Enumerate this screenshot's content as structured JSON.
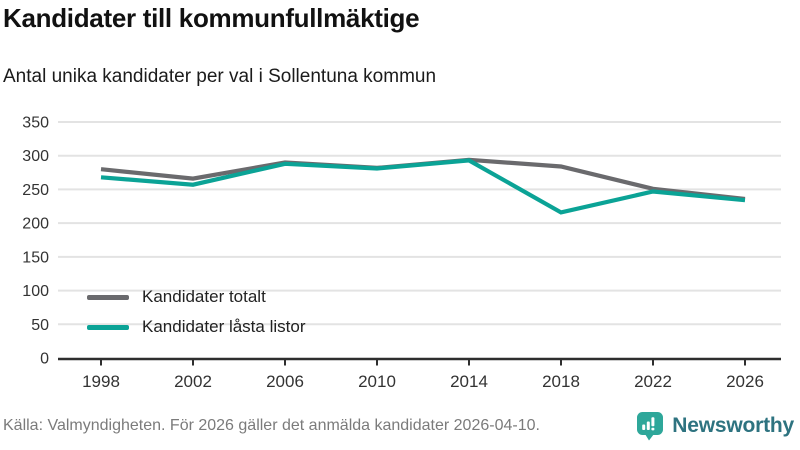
{
  "header": {
    "title": "Kandidater till kommunfullmäktige",
    "subtitle": "Antal unika kandidater per val i Sollentuna kommun"
  },
  "chart_data": {
    "type": "line",
    "categories": [
      "1998",
      "2002",
      "2006",
      "2010",
      "2014",
      "2018",
      "2022",
      "2026"
    ],
    "series": [
      {
        "name": "Kandidater totalt",
        "color": "#6a6a6d",
        "values": [
          280,
          266,
          290,
          282,
          294,
          284,
          251,
          236
        ]
      },
      {
        "name": "Kandidater låsta listor",
        "color": "#0ba396",
        "values": [
          268,
          257,
          288,
          281,
          293,
          216,
          247,
          234
        ]
      }
    ],
    "ylim": [
      0,
      350
    ],
    "yticks": [
      0,
      50,
      100,
      150,
      200,
      250,
      300,
      350
    ],
    "grid": true,
    "legend_position": "inside-bottom-left"
  },
  "footer": {
    "source": "Källa: Valmyndigheten. För 2026 gäller det anmälda kandidater 2026-04-10.",
    "brand": "Newsworthy"
  },
  "colors": {
    "grid": "#e3e3e3",
    "axis": "#2e2e2e",
    "tick_label": "#333333",
    "series_total": "#6a6a6d",
    "series_locked": "#0ba396",
    "footer_text": "#7b7b7b",
    "brand_teal": "#2ea79a",
    "brand_wordmark": "#2e7380"
  }
}
